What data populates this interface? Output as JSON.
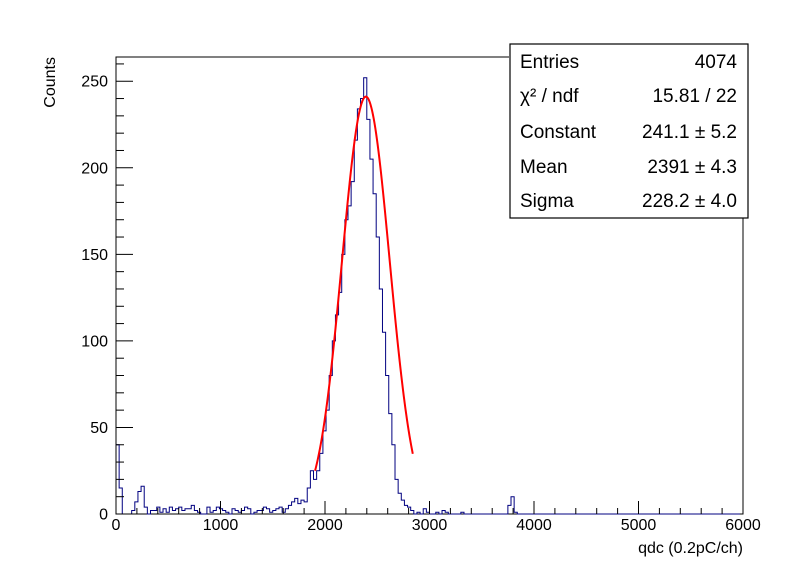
{
  "chart_data": {
    "type": "histogram",
    "xlabel": "qdc (0.2pC/ch)",
    "ylabel": "Counts",
    "xlim": [
      0,
      6000
    ],
    "ylim": [
      0,
      264
    ],
    "xticks": [
      0,
      1000,
      2000,
      3000,
      4000,
      5000,
      6000
    ],
    "yticks": [
      0,
      50,
      100,
      150,
      200,
      250
    ],
    "grid": false,
    "bin_width": 30,
    "counts": [
      40,
      15,
      0,
      0,
      0,
      2,
      7,
      13,
      16,
      4,
      0,
      2,
      2,
      4,
      1,
      3,
      1,
      4,
      2,
      3,
      4,
      2,
      3,
      3,
      5,
      2,
      1,
      0,
      0,
      4,
      1,
      2,
      4,
      3,
      2,
      1,
      0,
      3,
      2,
      1,
      2,
      4,
      3,
      0,
      1,
      2,
      2,
      4,
      3,
      1,
      2,
      3,
      4,
      1,
      3,
      5,
      7,
      9,
      6,
      8,
      7,
      15,
      25,
      20,
      25,
      35,
      48,
      60,
      80,
      100,
      115,
      128,
      150,
      170,
      178,
      192,
      216,
      234,
      240,
      252,
      228,
      205,
      185,
      160,
      130,
      105,
      80,
      58,
      40,
      20,
      12,
      8,
      5,
      4,
      2,
      0,
      1,
      0,
      3,
      1,
      0,
      0,
      1,
      0,
      2,
      1,
      0,
      0,
      0,
      0,
      1,
      0,
      0,
      0,
      0,
      0,
      0,
      0,
      0,
      0,
      0,
      0,
      0,
      0,
      0,
      5,
      10,
      1,
      0,
      0,
      0,
      0,
      0,
      0,
      0,
      0,
      0,
      0,
      0,
      0,
      0,
      0,
      0,
      0,
      0,
      0,
      0,
      0,
      0,
      0,
      0,
      0,
      0,
      0,
      0,
      0,
      0,
      0,
      0,
      0,
      0,
      0,
      0,
      0,
      0,
      0,
      0,
      0,
      0,
      0,
      0,
      0,
      0,
      0,
      0,
      0,
      0,
      0,
      0,
      0,
      0,
      0,
      0,
      0,
      0,
      0,
      0,
      0,
      0,
      0,
      0,
      0,
      0,
      0,
      0,
      0,
      0,
      0,
      0
    ],
    "fit": {
      "function": "gaus",
      "constant": 241.1,
      "mean": 2391,
      "sigma": 228.2,
      "range": [
        1905,
        2840
      ],
      "color": "#ff0000"
    },
    "line_color": "#000080",
    "stats_box": {
      "placement": "top-right",
      "rows": [
        {
          "name": "Entries",
          "value": "4074"
        },
        {
          "name": "χ² / ndf",
          "value": "15.81 / 22"
        },
        {
          "name": "Constant",
          "value": "241.1 ± 5.2"
        },
        {
          "name": "Mean",
          "value": "2391 ± 4.3"
        },
        {
          "name": "Sigma",
          "value": "228.2 ± 4.0"
        }
      ]
    }
  }
}
